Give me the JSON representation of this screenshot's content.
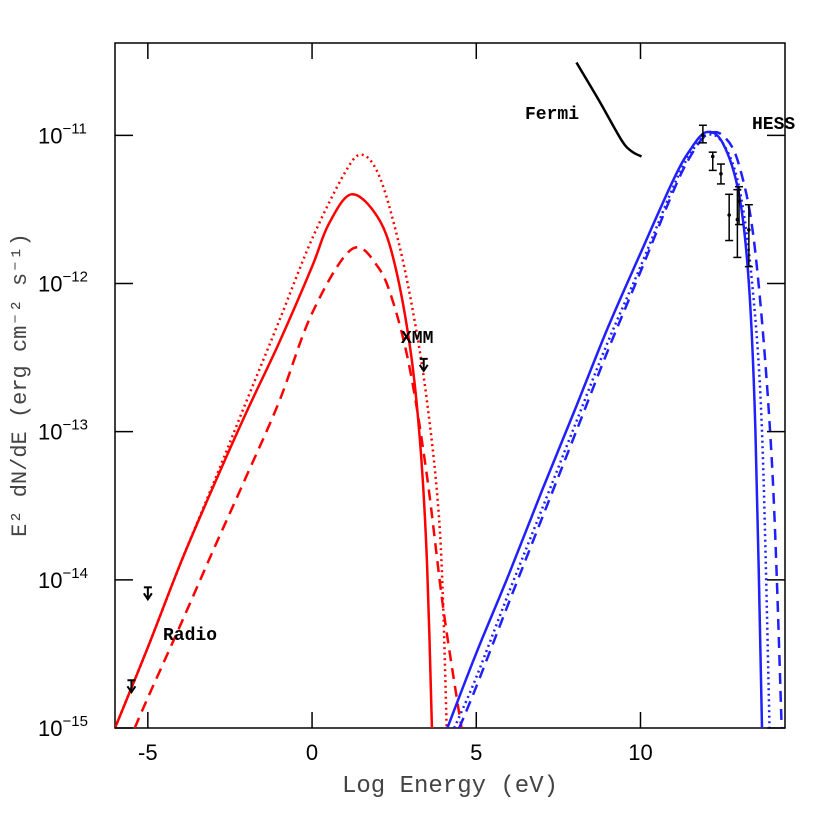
{
  "chart_data": {
    "type": "line",
    "xlabel": "Log Energy (eV)",
    "ylabel": "E² dN/dE (erg cm⁻² s⁻¹)",
    "xlim": [
      -6,
      14.4
    ],
    "ylim": [
      1e-15,
      4.2e-11
    ],
    "yscale": "log",
    "xticks": [
      -5,
      0,
      5,
      10
    ],
    "yticks": [
      {
        "value": 1e-11,
        "label": "10",
        "exponent": "−11"
      },
      {
        "value": 1e-12,
        "label": "10",
        "exponent": "−12"
      },
      {
        "value": 1e-13,
        "label": "10",
        "exponent": "−13"
      },
      {
        "value": 1e-14,
        "label": "10",
        "exponent": "−14"
      },
      {
        "value": 1e-15,
        "label": "10",
        "exponent": "−15"
      }
    ],
    "series": [
      {
        "color": "#ff0000",
        "style": "solid",
        "x": [
          -6,
          -5,
          -4,
          -3,
          -2,
          -1,
          0,
          0.5,
          1.2,
          2,
          2.5,
          3,
          3.3,
          3.5,
          3.65
        ],
        "values": [
          1e-15,
          3.5e-15,
          1.3e-14,
          4.3e-14,
          1.35e-13,
          4e-13,
          1.3e-12,
          2.5e-12,
          4e-12,
          2.8e-12,
          1.4e-12,
          3.5e-13,
          7.9e-14,
          1.3e-14,
          1e-15
        ]
      },
      {
        "color": "#ff0000",
        "style": "dotted",
        "x": [
          -6,
          -5,
          -4,
          -3,
          -2,
          -1,
          0,
          1,
          1.5,
          2,
          2.5,
          3,
          3.5,
          3.9,
          4.1
        ],
        "values": [
          1e-15,
          3.5e-15,
          1.3e-14,
          4.5e-14,
          1.6e-13,
          5.6e-13,
          2e-12,
          5.6e-12,
          7.4e-12,
          5.6e-12,
          2.5e-12,
          7.9e-13,
          1.6e-13,
          2e-14,
          1e-15
        ]
      },
      {
        "color": "#ff0000",
        "style": "dashed",
        "x": [
          -5.4,
          -5,
          -4,
          -3,
          -2,
          -1,
          0,
          1.2,
          2,
          2.5,
          3,
          3.5,
          4,
          4.55
        ],
        "values": [
          1e-15,
          1.6e-15,
          5e-15,
          1.6e-14,
          5e-14,
          1.6e-13,
          6.3e-13,
          1.7e-12,
          1.3e-12,
          7.1e-13,
          2.5e-13,
          5e-14,
          6.3e-15,
          1e-15
        ]
      },
      {
        "color": "#1f1fff",
        "style": "solid",
        "x": [
          4.12,
          5,
          6,
          7,
          8,
          9,
          10,
          11,
          11.5,
          12,
          12.5,
          13,
          13.3,
          13.5,
          13.7
        ],
        "values": [
          1e-15,
          3.2e-15,
          1.1e-14,
          4e-14,
          1.4e-13,
          5e-13,
          1.6e-12,
          5e-12,
          7.9e-12,
          1.05e-11,
          8.9e-12,
          4e-12,
          1e-12,
          1e-13,
          1e-15
        ]
      },
      {
        "color": "#1f1fff",
        "style": "dotted",
        "x": [
          4.33,
          5,
          6,
          7,
          8,
          9,
          10,
          11,
          11.5,
          12,
          12.5,
          13,
          13.4,
          13.7,
          13.93
        ],
        "values": [
          1e-15,
          2.2e-15,
          8.3e-15,
          3e-14,
          1.1e-13,
          4e-13,
          1.3e-12,
          4.5e-12,
          7.4e-12,
          1e-11,
          8.9e-12,
          4.5e-12,
          1e-12,
          1e-13,
          1e-15
        ]
      },
      {
        "color": "#1f1fff",
        "style": "dashed",
        "x": [
          4.48,
          5,
          6,
          7,
          8,
          9,
          10,
          11,
          11.5,
          12,
          12.5,
          13,
          13.5,
          14,
          14.3
        ],
        "values": [
          1e-15,
          1.9e-15,
          7.1e-15,
          2.6e-14,
          9.5e-14,
          3.5e-13,
          1.2e-12,
          4.2e-12,
          7.1e-12,
          1e-11,
          1e-11,
          6.3e-12,
          1.6e-12,
          6.3e-14,
          1e-15
        ]
      },
      {
        "color": "#000000",
        "style": "solid",
        "x": [
          8.05,
          8.75,
          9.42,
          9.73,
          10.03
        ],
        "values": [
          3.1e-11,
          1.7e-11,
          9.3e-12,
          7.8e-12,
          7.2e-12
        ]
      }
    ],
    "error_points": {
      "color": "#000000",
      "x": [
        11.9,
        12.2,
        12.45,
        12.7,
        12.95,
        13.0,
        13.3
      ],
      "values": [
        1e-11,
        7.2e-12,
        5.5e-12,
        2.9e-12,
        2.7e-12,
        3.6e-12,
        2.3e-12
      ],
      "lower": [
        8.9e-12,
        5.8e-12,
        4.7e-12,
        1.95e-12,
        1.5e-12,
        2.5e-12,
        1.3e-12
      ],
      "upper": [
        1.17e-11,
        7.7e-12,
        6.4e-12,
        4e-12,
        4.3e-12,
        4.5e-12,
        3.4e-12
      ]
    },
    "upper_limits": {
      "color": "#000000",
      "x": [
        -5.0,
        -5.5,
        3.4
      ],
      "values": [
        8.9e-15,
        2.1e-15,
        3.1e-13
      ]
    },
    "annotations": [
      "Fermi",
      "HESS",
      "XMM",
      "Radio"
    ]
  }
}
